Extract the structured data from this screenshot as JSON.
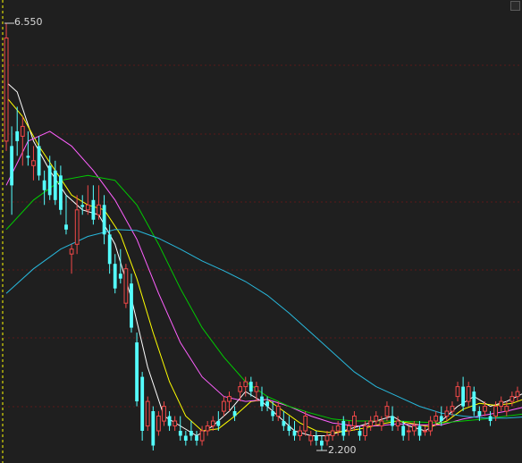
{
  "chart_data": {
    "type": "candlestick",
    "price_high": 6.55,
    "price_low": 2.2,
    "max_marker_label": "6.550",
    "min_marker_label": "2.200",
    "colors": {
      "up": "#f04848",
      "down": "#54ffff",
      "ma5": "#ffffff",
      "ma10": "#ffff00",
      "ma20": "#ff60ff",
      "ma30": "#00cc00",
      "ma60": "#28b8dc",
      "grid": "#5a1a1a",
      "axis": "#ffff00",
      "background": "#1f1f1f"
    },
    "candles": [
      [
        5.35,
        6.55,
        5.25,
        6.4
      ],
      [
        5.3,
        5.5,
        4.6,
        4.9
      ],
      [
        5.45,
        5.7,
        5.2,
        5.35
      ],
      [
        5.4,
        5.6,
        5.1,
        5.5
      ],
      [
        5.2,
        5.45,
        5.1,
        5.18
      ],
      [
        5.1,
        5.3,
        4.95,
        5.15
      ],
      [
        5.3,
        5.4,
        4.95,
        5.0
      ],
      [
        4.95,
        5.05,
        4.7,
        4.85
      ],
      [
        5.1,
        5.2,
        4.75,
        4.8
      ],
      [
        5.05,
        5.15,
        4.7,
        4.75
      ],
      [
        5.0,
        5.1,
        4.6,
        4.65
      ],
      [
        4.5,
        4.8,
        4.4,
        4.45
      ],
      [
        4.2,
        4.3,
        4.0,
        4.25
      ],
      [
        4.3,
        4.8,
        4.2,
        4.65
      ],
      [
        4.7,
        4.8,
        4.6,
        4.68
      ],
      [
        4.65,
        4.9,
        4.6,
        4.7
      ],
      [
        4.75,
        4.9,
        4.5,
        4.55
      ],
      [
        4.6,
        4.9,
        4.55,
        4.7
      ],
      [
        4.7,
        4.8,
        4.3,
        4.4
      ],
      [
        4.4,
        4.5,
        4.0,
        4.1
      ],
      [
        4.1,
        4.2,
        3.8,
        3.85
      ],
      [
        4.0,
        4.25,
        3.9,
        3.95
      ],
      [
        3.7,
        4.1,
        3.65,
        4.05
      ],
      [
        3.9,
        4.0,
        3.4,
        3.45
      ],
      [
        3.3,
        3.4,
        2.65,
        2.7
      ],
      [
        2.95,
        3.0,
        2.3,
        2.4
      ],
      [
        2.45,
        2.75,
        2.4,
        2.7
      ],
      [
        2.6,
        2.65,
        2.2,
        2.25
      ],
      [
        2.4,
        2.6,
        2.35,
        2.55
      ],
      [
        2.5,
        2.7,
        2.45,
        2.65
      ],
      [
        2.55,
        2.6,
        2.4,
        2.45
      ],
      [
        2.45,
        2.55,
        2.4,
        2.5
      ],
      [
        2.4,
        2.55,
        2.3,
        2.35
      ],
      [
        2.35,
        2.4,
        2.25,
        2.3
      ],
      [
        2.4,
        2.5,
        2.3,
        2.35
      ],
      [
        2.35,
        2.4,
        2.25,
        2.3
      ],
      [
        2.3,
        2.45,
        2.25,
        2.4
      ],
      [
        2.4,
        2.5,
        2.35,
        2.45
      ],
      [
        2.45,
        2.55,
        2.4,
        2.5
      ],
      [
        2.5,
        2.6,
        2.4,
        2.45
      ],
      [
        2.6,
        2.75,
        2.55,
        2.7
      ],
      [
        2.7,
        2.8,
        2.6,
        2.75
      ],
      [
        2.6,
        2.65,
        2.5,
        2.55
      ],
      [
        2.8,
        2.9,
        2.7,
        2.85
      ],
      [
        2.85,
        2.95,
        2.75,
        2.9
      ],
      [
        2.9,
        2.95,
        2.75,
        2.8
      ],
      [
        2.8,
        2.9,
        2.7,
        2.85
      ],
      [
        2.75,
        2.85,
        2.6,
        2.65
      ],
      [
        2.7,
        2.75,
        2.6,
        2.65
      ],
      [
        2.6,
        2.7,
        2.5,
        2.55
      ],
      [
        2.55,
        2.7,
        2.5,
        2.65
      ],
      [
        2.5,
        2.6,
        2.4,
        2.45
      ],
      [
        2.45,
        2.55,
        2.35,
        2.4
      ],
      [
        2.4,
        2.5,
        2.3,
        2.35
      ],
      [
        2.35,
        2.45,
        2.3,
        2.4
      ],
      [
        2.4,
        2.6,
        2.35,
        2.55
      ],
      [
        2.3,
        2.4,
        2.25,
        2.35
      ],
      [
        2.35,
        2.4,
        2.25,
        2.3
      ],
      [
        2.3,
        2.35,
        2.2,
        2.25
      ],
      [
        2.3,
        2.4,
        2.25,
        2.35
      ],
      [
        2.35,
        2.45,
        2.3,
        2.4
      ],
      [
        2.4,
        2.5,
        2.35,
        2.45
      ],
      [
        2.5,
        2.55,
        2.3,
        2.35
      ],
      [
        2.4,
        2.5,
        2.35,
        2.45
      ],
      [
        2.45,
        2.6,
        2.4,
        2.55
      ],
      [
        2.4,
        2.45,
        2.3,
        2.35
      ],
      [
        2.35,
        2.5,
        2.3,
        2.45
      ],
      [
        2.45,
        2.55,
        2.4,
        2.5
      ],
      [
        2.5,
        2.6,
        2.45,
        2.55
      ],
      [
        2.45,
        2.55,
        2.4,
        2.5
      ],
      [
        2.55,
        2.7,
        2.5,
        2.65
      ],
      [
        2.55,
        2.65,
        2.4,
        2.45
      ],
      [
        2.45,
        2.55,
        2.4,
        2.5
      ],
      [
        2.45,
        2.5,
        2.3,
        2.35
      ],
      [
        2.4,
        2.45,
        2.3,
        2.4
      ],
      [
        2.4,
        2.5,
        2.35,
        2.45
      ],
      [
        2.45,
        2.5,
        2.3,
        2.35
      ],
      [
        2.4,
        2.45,
        2.35,
        2.4
      ],
      [
        2.4,
        2.55,
        2.35,
        2.5
      ],
      [
        2.5,
        2.6,
        2.45,
        2.55
      ],
      [
        2.55,
        2.65,
        2.45,
        2.5
      ],
      [
        2.55,
        2.65,
        2.5,
        2.6
      ],
      [
        2.6,
        2.7,
        2.55,
        2.65
      ],
      [
        2.75,
        2.9,
        2.7,
        2.85
      ],
      [
        2.85,
        2.95,
        2.6,
        2.65
      ],
      [
        2.7,
        2.9,
        2.65,
        2.85
      ],
      [
        2.8,
        2.85,
        2.55,
        2.6
      ],
      [
        2.6,
        2.65,
        2.5,
        2.55
      ],
      [
        2.6,
        2.7,
        2.55,
        2.65
      ],
      [
        2.55,
        2.6,
        2.45,
        2.5
      ],
      [
        2.55,
        2.7,
        2.5,
        2.65
      ],
      [
        2.65,
        2.75,
        2.6,
        2.7
      ],
      [
        2.6,
        2.7,
        2.55,
        2.65
      ],
      [
        2.7,
        2.8,
        2.65,
        2.75
      ],
      [
        2.75,
        2.85,
        2.7,
        2.8
      ]
    ],
    "ma_lines": [
      {
        "color": "#ffffff",
        "points": [
          [
            0,
            5.95
          ],
          [
            2,
            5.85
          ],
          [
            5,
            5.35
          ],
          [
            8,
            5.05
          ],
          [
            11,
            4.8
          ],
          [
            14,
            4.65
          ],
          [
            17,
            4.6
          ],
          [
            20,
            4.3
          ],
          [
            23,
            3.75
          ],
          [
            26,
            3.05
          ],
          [
            29,
            2.55
          ],
          [
            32,
            2.45
          ],
          [
            35,
            2.35
          ],
          [
            38,
            2.45
          ],
          [
            41,
            2.6
          ],
          [
            44,
            2.8
          ],
          [
            47,
            2.7
          ],
          [
            50,
            2.55
          ],
          [
            53,
            2.4
          ],
          [
            56,
            2.35
          ],
          [
            59,
            2.35
          ],
          [
            62,
            2.4
          ],
          [
            65,
            2.45
          ],
          [
            68,
            2.5
          ],
          [
            71,
            2.55
          ],
          [
            74,
            2.45
          ],
          [
            77,
            2.4
          ],
          [
            80,
            2.5
          ],
          [
            83,
            2.65
          ],
          [
            86,
            2.75
          ],
          [
            89,
            2.65
          ],
          [
            92,
            2.7
          ],
          [
            95,
            2.78
          ]
        ]
      },
      {
        "color": "#ffff00",
        "points": [
          [
            0,
            5.8
          ],
          [
            3,
            5.6
          ],
          [
            6,
            5.3
          ],
          [
            9,
            5.05
          ],
          [
            12,
            4.8
          ],
          [
            15,
            4.7
          ],
          [
            18,
            4.65
          ],
          [
            21,
            4.4
          ],
          [
            24,
            3.95
          ],
          [
            27,
            3.4
          ],
          [
            30,
            2.9
          ],
          [
            33,
            2.55
          ],
          [
            36,
            2.4
          ],
          [
            39,
            2.42
          ],
          [
            42,
            2.55
          ],
          [
            45,
            2.7
          ],
          [
            48,
            2.72
          ],
          [
            51,
            2.6
          ],
          [
            54,
            2.48
          ],
          [
            57,
            2.4
          ],
          [
            60,
            2.38
          ],
          [
            63,
            2.4
          ],
          [
            66,
            2.43
          ],
          [
            69,
            2.47
          ],
          [
            72,
            2.5
          ],
          [
            75,
            2.47
          ],
          [
            78,
            2.44
          ],
          [
            81,
            2.5
          ],
          [
            84,
            2.62
          ],
          [
            87,
            2.68
          ],
          [
            90,
            2.66
          ],
          [
            93,
            2.68
          ],
          [
            95,
            2.72
          ]
        ]
      },
      {
        "color": "#ff60ff",
        "points": [
          [
            0,
            4.9
          ],
          [
            4,
            5.35
          ],
          [
            8,
            5.45
          ],
          [
            12,
            5.3
          ],
          [
            16,
            5.05
          ],
          [
            20,
            4.75
          ],
          [
            24,
            4.35
          ],
          [
            28,
            3.8
          ],
          [
            32,
            3.3
          ],
          [
            36,
            2.95
          ],
          [
            40,
            2.75
          ],
          [
            44,
            2.7
          ],
          [
            48,
            2.72
          ],
          [
            52,
            2.65
          ],
          [
            56,
            2.55
          ],
          [
            60,
            2.48
          ],
          [
            64,
            2.45
          ],
          [
            68,
            2.45
          ],
          [
            72,
            2.47
          ],
          [
            76,
            2.46
          ],
          [
            80,
            2.46
          ],
          [
            84,
            2.52
          ],
          [
            88,
            2.56
          ],
          [
            92,
            2.6
          ],
          [
            95,
            2.64
          ]
        ]
      },
      {
        "color": "#00cc00",
        "points": [
          [
            0,
            4.45
          ],
          [
            5,
            4.75
          ],
          [
            10,
            4.95
          ],
          [
            15,
            5.0
          ],
          [
            20,
            4.95
          ],
          [
            24,
            4.7
          ],
          [
            28,
            4.3
          ],
          [
            32,
            3.85
          ],
          [
            36,
            3.45
          ],
          [
            40,
            3.15
          ],
          [
            44,
            2.9
          ],
          [
            48,
            2.75
          ],
          [
            52,
            2.65
          ],
          [
            56,
            2.58
          ],
          [
            60,
            2.52
          ],
          [
            64,
            2.5
          ],
          [
            68,
            2.5
          ],
          [
            72,
            2.5
          ],
          [
            76,
            2.49
          ],
          [
            80,
            2.48
          ],
          [
            84,
            2.5
          ],
          [
            88,
            2.52
          ],
          [
            92,
            2.55
          ],
          [
            95,
            2.57
          ]
        ]
      },
      {
        "color": "#28b8dc",
        "points": [
          [
            0,
            3.8
          ],
          [
            5,
            4.05
          ],
          [
            10,
            4.25
          ],
          [
            15,
            4.38
          ],
          [
            20,
            4.45
          ],
          [
            24,
            4.44
          ],
          [
            28,
            4.36
          ],
          [
            32,
            4.25
          ],
          [
            36,
            4.13
          ],
          [
            40,
            4.03
          ],
          [
            44,
            3.92
          ],
          [
            48,
            3.78
          ],
          [
            52,
            3.6
          ],
          [
            56,
            3.4
          ],
          [
            60,
            3.2
          ],
          [
            64,
            3.0
          ],
          [
            68,
            2.85
          ],
          [
            72,
            2.75
          ],
          [
            76,
            2.65
          ],
          [
            80,
            2.58
          ],
          [
            84,
            2.55
          ],
          [
            88,
            2.53
          ],
          [
            92,
            2.53
          ],
          [
            95,
            2.54
          ]
        ]
      }
    ]
  },
  "ui": {
    "corner_button": "restore-button"
  }
}
